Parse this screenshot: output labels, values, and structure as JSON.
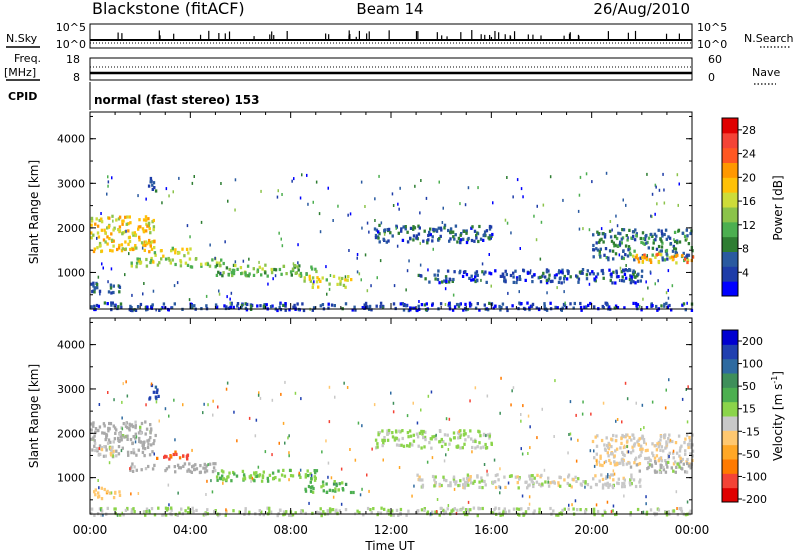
{
  "header": {
    "station": "Blackstone (fitACF)",
    "beam": "Beam 14",
    "date": "26/Aug/2010"
  },
  "status_panels": {
    "nsky_label": "N.Sky",
    "nsky_ticks": [
      "10^5",
      "10^0"
    ],
    "nsearch_label": "N.Search",
    "nsearch_ticks": [
      "10^5",
      "10^0"
    ],
    "freq_label": "Freq.",
    "freq_unit": "[MHz]",
    "freq_ticks": [
      "18",
      "8"
    ],
    "nave_label": "Nave",
    "nave_ticks": [
      "60",
      "0"
    ],
    "cpid_label": "CPID",
    "cpid_text": "normal (fast stereo) 153"
  },
  "colors": {
    "power_scale": [
      "#0000ff",
      "#1e3ca8",
      "#2a5aa0",
      "#2e7d32",
      "#4caf50",
      "#8bc34a",
      "#cddc39",
      "#ffc107",
      "#ff9800",
      "#ff5722",
      "#f44336",
      "#e00000"
    ],
    "velocity_scale": [
      "#e00000",
      "#f44336",
      "#ff7a00",
      "#ffa726",
      "#ffc870",
      "#c8c8c8",
      "#8bd44a",
      "#4caf50",
      "#3e8f5a",
      "#2e6aa0",
      "#2040b0",
      "#0000d0"
    ],
    "ground_scatter": "#aaaaaa"
  },
  "chart_data": [
    {
      "type": "heatmap",
      "name": "power",
      "ylabel": "Slant Range [km]",
      "xlim_hours": [
        0,
        24
      ],
      "ylim_km": [
        180,
        4600
      ],
      "yticks": [
        1000,
        2000,
        3000,
        4000
      ],
      "colorbar": {
        "label": "Power [dB]",
        "range": [
          0,
          30
        ],
        "ticks": [
          "28",
          "24",
          "20",
          "16",
          "12",
          "8",
          "4"
        ]
      },
      "scatter_regions": [
        {
          "t_start": 0.0,
          "t_end": 2.6,
          "r_start": 1500,
          "r_end": 2300,
          "value": 18
        },
        {
          "t_start": 0.0,
          "t_end": 1.2,
          "r_start": 550,
          "r_end": 800,
          "value": 6
        },
        {
          "t_start": 2.5,
          "t_end": 4.0,
          "r_start": 1400,
          "r_end": 1600,
          "value": 16
        },
        {
          "t_start": 1.5,
          "t_end": 5.5,
          "r_start": 1150,
          "r_end": 1350,
          "value": 14
        },
        {
          "t_start": 5.0,
          "t_end": 9.0,
          "r_start": 950,
          "r_end": 1200,
          "value": 12
        },
        {
          "t_start": 8.5,
          "t_end": 10.5,
          "r_start": 700,
          "r_end": 950,
          "value": 16
        },
        {
          "t_start": 11.3,
          "t_end": 16.0,
          "r_start": 1700,
          "r_end": 2100,
          "value": 6
        },
        {
          "t_start": 13.0,
          "t_end": 22.0,
          "r_start": 800,
          "r_end": 1100,
          "value": 5
        },
        {
          "t_start": 20.0,
          "t_end": 24.0,
          "r_start": 1300,
          "r_end": 2000,
          "value": 8
        },
        {
          "t_start": 21.5,
          "t_end": 24.0,
          "r_start": 1250,
          "r_end": 1450,
          "value": 20
        },
        {
          "t_start": 2.3,
          "t_end": 2.7,
          "r_start": 2800,
          "r_end": 3150,
          "value": 6
        },
        {
          "t_start": 0.0,
          "t_end": 24.0,
          "r_start": 180,
          "r_end": 350,
          "value": 4
        }
      ]
    },
    {
      "type": "heatmap",
      "name": "velocity",
      "ylabel": "Slant Range [km]",
      "xlabel": "Time UT",
      "xlim_hours": [
        0,
        24
      ],
      "ylim_km": [
        180,
        4600
      ],
      "yticks": [
        1000,
        2000,
        3000,
        4000
      ],
      "xticks": [
        "00:00",
        "04:00",
        "08:00",
        "12:00",
        "16:00",
        "20:00",
        "00:00"
      ],
      "colorbar": {
        "label": "Velocity [m s",
        "superscript": "-1",
        "label_end": "]",
        "ticks": [
          "200",
          "100",
          "50",
          "15",
          "-15",
          "-50",
          "-100",
          "-200"
        ]
      },
      "scatter_regions": [
        {
          "t_start": 0.0,
          "t_end": 2.6,
          "r_start": 1500,
          "r_end": 2300,
          "value": 0,
          "ground": true
        },
        {
          "t_start": 0.0,
          "t_end": 1.0,
          "r_start": 1500,
          "r_end": 1750,
          "value": -40
        },
        {
          "t_start": 0.0,
          "t_end": 1.2,
          "r_start": 550,
          "r_end": 800,
          "value": -60
        },
        {
          "t_start": 2.6,
          "t_end": 3.9,
          "r_start": 1450,
          "r_end": 1650,
          "value": -180
        },
        {
          "t_start": 1.5,
          "t_end": 5.0,
          "r_start": 1150,
          "r_end": 1350,
          "value": 0,
          "ground": true
        },
        {
          "t_start": 5.0,
          "t_end": 9.0,
          "r_start": 950,
          "r_end": 1200,
          "value": 30
        },
        {
          "t_start": 8.5,
          "t_end": 10.5,
          "r_start": 700,
          "r_end": 950,
          "value": 60
        },
        {
          "t_start": 11.3,
          "t_end": 16.0,
          "r_start": 1700,
          "r_end": 2100,
          "value": 10
        },
        {
          "t_start": 13.0,
          "t_end": 22.0,
          "r_start": 800,
          "r_end": 1100,
          "value": -20
        },
        {
          "t_start": 20.0,
          "t_end": 24.0,
          "r_start": 1300,
          "r_end": 2000,
          "value": -30
        },
        {
          "t_start": 21.5,
          "t_end": 24.0,
          "r_start": 1150,
          "r_end": 1400,
          "value": 0,
          "ground": true
        },
        {
          "t_start": 2.3,
          "t_end": 2.7,
          "r_start": 2800,
          "r_end": 3150,
          "value": 180
        },
        {
          "t_start": 0.0,
          "t_end": 24.0,
          "r_start": 180,
          "r_end": 350,
          "value": 0
        }
      ]
    }
  ]
}
